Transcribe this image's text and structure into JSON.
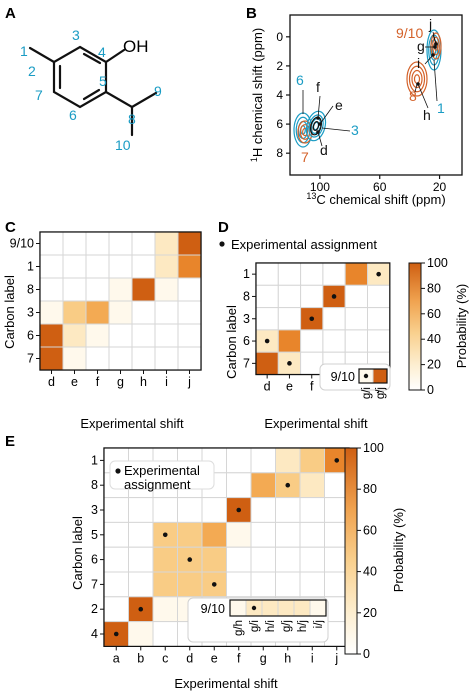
{
  "colors": {
    "teal": "#1a9cc4",
    "orange": "#d4622a",
    "black": "#111111",
    "grid": "#d6d6d6",
    "scale": [
      "#fff9ec",
      "#fde9c2",
      "#f9cc85",
      "#f3aa53",
      "#e8852b",
      "#cf5f12"
    ]
  },
  "panels": {
    "A": {
      "letter": "A",
      "hydroxyl": "OH",
      "atoms": [
        "1",
        "2",
        "3",
        "4",
        "5",
        "6",
        "7",
        "8",
        "9",
        "10"
      ]
    },
    "B": {
      "letter": "B",
      "ylabel_sup": "1",
      "ylabel": "H chemical shift (ppm)",
      "xlabel_sup": "13",
      "xlabel": "C chemical shift (ppm)",
      "xticks": [
        "100",
        "60",
        "20"
      ],
      "yticks": [
        "0",
        "2",
        "4",
        "6",
        "8"
      ],
      "labels_teal": [
        "6",
        "3",
        "1"
      ],
      "labels_orange": [
        "9/10",
        "8",
        "7"
      ],
      "labels_black": [
        "j",
        "g",
        "i",
        "h",
        "f",
        "e",
        "d"
      ]
    },
    "C": {
      "letter": "C",
      "ylabel": "Carbon label",
      "xlabel": "Experimental shift"
    },
    "D": {
      "letter": "D",
      "ylabel": "Carbon label",
      "xlabel": "Experimental shift",
      "legend": "Experimental assignment",
      "inset_label": "9/10",
      "inset_cols": [
        "g/i",
        "g/j"
      ]
    },
    "E": {
      "letter": "E",
      "ylabel": "Carbon label",
      "xlabel": "Experimental shift",
      "legend_line1": "Experimental",
      "legend_line2": "assignment",
      "inset_label": "9/10",
      "inset_cols": [
        "g/h",
        "g/i",
        "h/i",
        "g/j",
        "h/j",
        "i/j"
      ]
    }
  },
  "colorbar": {
    "label": "Probability (%)",
    "ticks": [
      "0",
      "20",
      "40",
      "60",
      "80",
      "100"
    ]
  },
  "chart_data": [
    {
      "type": "heatmap",
      "panel": "C",
      "rows": [
        "9/10",
        "1",
        "8",
        "3",
        "6",
        "7"
      ],
      "cols": [
        "d",
        "e",
        "f",
        "g",
        "h",
        "i",
        "j"
      ],
      "values": [
        [
          0,
          0,
          0,
          0,
          0,
          8,
          85
        ],
        [
          0,
          0,
          0,
          0,
          0,
          20,
          70
        ],
        [
          0,
          0,
          0,
          4,
          88,
          6,
          0
        ],
        [
          6,
          30,
          45,
          6,
          0,
          0,
          0
        ],
        [
          85,
          10,
          4,
          0,
          0,
          0,
          0
        ],
        [
          90,
          4,
          0,
          0,
          0,
          0,
          0
        ]
      ],
      "xlabel": "Experimental shift",
      "ylabel": "Carbon label",
      "colorbar_range": [
        0,
        100
      ]
    },
    {
      "type": "heatmap",
      "panel": "D",
      "rows": [
        "1",
        "8",
        "3",
        "6",
        "7"
      ],
      "cols": [
        "d",
        "e",
        "f",
        "h",
        "i",
        "j"
      ],
      "values": [
        [
          0,
          0,
          0,
          0,
          80,
          10
        ],
        [
          0,
          0,
          0,
          92,
          0,
          0
        ],
        [
          0,
          0,
          95,
          0,
          0,
          0
        ],
        [
          12,
          80,
          0,
          0,
          0,
          0
        ],
        [
          85,
          12,
          0,
          0,
          0,
          0
        ]
      ],
      "assigned": [
        [
          0,
          5
        ],
        [
          1,
          3
        ],
        [
          2,
          2
        ],
        [
          3,
          0
        ],
        [
          4,
          1
        ]
      ],
      "inset": {
        "label": "9/10",
        "cols": [
          "g/i",
          "g/j"
        ],
        "values": [
          5,
          90
        ],
        "assigned": 0
      },
      "xlabel": "Experimental shift",
      "ylabel": "Carbon label"
    },
    {
      "type": "heatmap",
      "panel": "E",
      "rows": [
        "1",
        "8",
        "3",
        "5",
        "6",
        "7",
        "2",
        "4"
      ],
      "cols": [
        "a",
        "b",
        "c",
        "d",
        "e",
        "f",
        "g",
        "h",
        "i",
        "j"
      ],
      "values": [
        [
          0,
          0,
          0,
          0,
          0,
          0,
          0,
          12,
          25,
          70
        ],
        [
          0,
          0,
          0,
          0,
          0,
          0,
          45,
          35,
          8,
          0
        ],
        [
          0,
          0,
          0,
          0,
          0,
          92,
          0,
          0,
          0,
          0
        ],
        [
          0,
          0,
          25,
          30,
          45,
          5,
          0,
          0,
          0,
          0
        ],
        [
          0,
          0,
          30,
          35,
          28,
          0,
          0,
          0,
          0,
          0
        ],
        [
          0,
          0,
          35,
          30,
          25,
          0,
          0,
          0,
          0,
          0
        ],
        [
          0,
          88,
          5,
          3,
          2,
          0,
          0,
          0,
          0,
          0
        ],
        [
          92,
          5,
          0,
          0,
          0,
          0,
          0,
          0,
          0,
          0
        ]
      ],
      "assigned": [
        [
          0,
          9
        ],
        [
          1,
          7
        ],
        [
          2,
          5
        ],
        [
          3,
          2
        ],
        [
          4,
          3
        ],
        [
          5,
          4
        ],
        [
          6,
          1
        ],
        [
          7,
          0
        ]
      ],
      "inset": {
        "label": "9/10",
        "cols": [
          "g/h",
          "g/i",
          "h/i",
          "g/j",
          "h/j",
          "i/j"
        ],
        "values": [
          5,
          18,
          12,
          10,
          8,
          6
        ],
        "assigned": 1
      },
      "xlabel": "Experimental shift",
      "ylabel": "Carbon label"
    }
  ]
}
